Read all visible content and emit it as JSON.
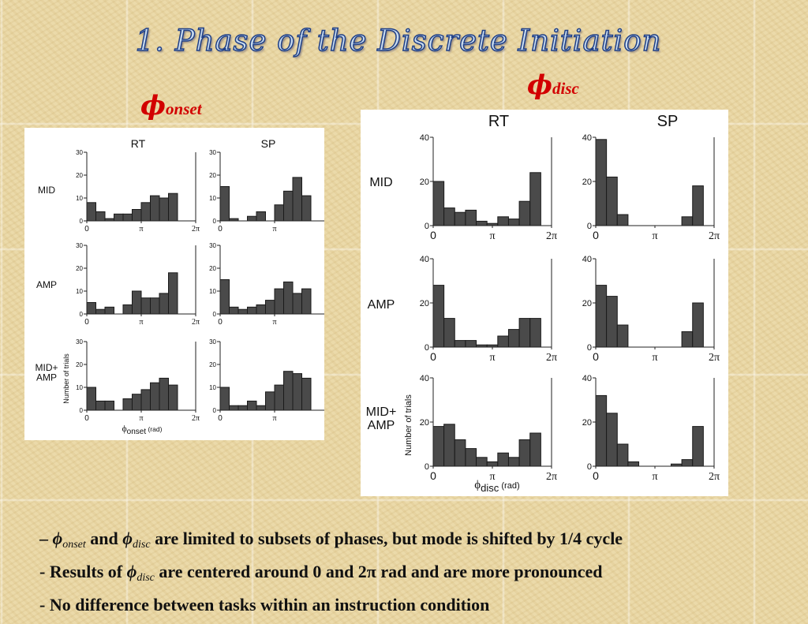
{
  "slide": {
    "title": "1. Phase of the Discrete Initiation",
    "phi_onset_label": {
      "symbol": "ϕ",
      "sub": "onset"
    },
    "phi_disc_label": {
      "symbol": "ϕ",
      "sub": "disc"
    },
    "bullets": [
      {
        "prefix": "– ",
        "sym1": "ϕ",
        "sub1": "onset",
        "mid1": " and ",
        "sym2": "ϕ",
        "sub2": "disc",
        "rest": " are limited to subsets of phases, but mode is shifted by 1/4 cycle"
      },
      {
        "prefix": "- ",
        "pre": "Results of ",
        "sym1": "ϕ",
        "sub1": "disc",
        "rest": " are centered around 0 and 2π rad and are more pronounced"
      },
      {
        "prefix": "- ",
        "rest": "No difference between tasks within an instruction condition"
      }
    ]
  },
  "chart_data": [
    {
      "type": "bar",
      "columns": [
        "RT",
        "SP"
      ],
      "rows": [
        "MID",
        "AMP",
        "MID+\nAMP"
      ],
      "ylabel": "Number of trials",
      "xlabel": {
        "symbol": "ϕ",
        "sub": "onset",
        "unit": " (rad)"
      },
      "ylim": [
        0,
        30
      ],
      "yticks": [
        0,
        10,
        20,
        30
      ],
      "xticks": [
        "0",
        "π",
        "2π"
      ],
      "bins": 12,
      "panels": [
        {
          "row": "MID",
          "column": "RT",
          "values": [
            8,
            4,
            1,
            3,
            3,
            5,
            8,
            11,
            10,
            12
          ]
        },
        {
          "row": "MID",
          "column": "SP",
          "values": [
            15,
            1,
            0,
            2,
            4,
            0,
            7,
            13,
            19,
            11
          ]
        },
        {
          "row": "AMP",
          "column": "RT",
          "values": [
            5,
            2,
            3,
            0,
            4,
            10,
            7,
            7,
            9,
            18
          ]
        },
        {
          "row": "AMP",
          "column": "SP",
          "values": [
            15,
            3,
            2,
            3,
            4,
            6,
            11,
            14,
            9,
            11
          ]
        },
        {
          "row": "MID+\nAMP",
          "column": "RT",
          "values": [
            10,
            4,
            4,
            0,
            5,
            7,
            9,
            12,
            14,
            11
          ]
        },
        {
          "row": "MID+\nAMP",
          "column": "SP",
          "values": [
            10,
            2,
            2,
            4,
            2,
            8,
            11,
            17,
            16,
            14
          ]
        }
      ]
    },
    {
      "type": "bar",
      "columns": [
        "RT",
        "SP"
      ],
      "rows": [
        "MID",
        "AMP",
        "MID+\nAMP"
      ],
      "ylabel": "Number of trials",
      "xlabel": {
        "symbol": "ϕ",
        "sub": "disc",
        "unit": " (rad)"
      },
      "ylim": [
        0,
        40
      ],
      "yticks": [
        0,
        20,
        40
      ],
      "xticks": [
        "0",
        "π",
        "2π"
      ],
      "bins": 11,
      "panels": [
        {
          "row": "MID",
          "column": "RT",
          "values": [
            20,
            8,
            6,
            7,
            2,
            1,
            4,
            3,
            11,
            24
          ]
        },
        {
          "row": "MID",
          "column": "SP",
          "values": [
            39,
            22,
            5,
            0,
            0,
            0,
            0,
            0,
            4,
            18
          ]
        },
        {
          "row": "AMP",
          "column": "RT",
          "values": [
            28,
            13,
            3,
            3,
            1,
            1,
            5,
            8,
            13,
            13
          ]
        },
        {
          "row": "AMP",
          "column": "SP",
          "values": [
            28,
            23,
            10,
            0,
            0,
            0,
            0,
            0,
            7,
            20
          ]
        },
        {
          "row": "MID+\nAMP",
          "column": "RT",
          "values": [
            18,
            19,
            12,
            8,
            4,
            2,
            6,
            4,
            12,
            15
          ]
        },
        {
          "row": "MID+\nAMP",
          "column": "SP",
          "values": [
            32,
            24,
            10,
            2,
            0,
            0,
            0,
            1,
            3,
            18
          ]
        }
      ]
    }
  ]
}
